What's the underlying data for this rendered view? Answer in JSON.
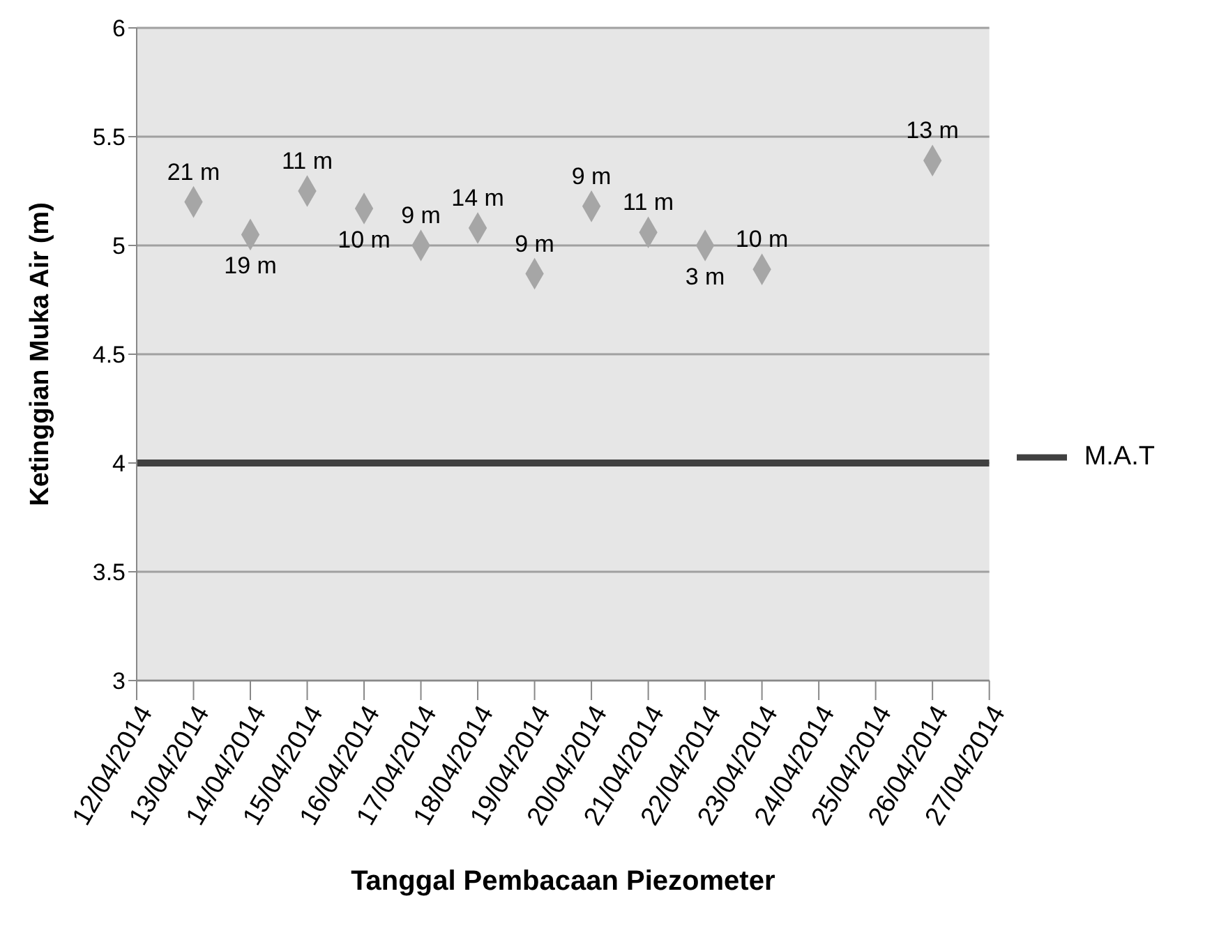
{
  "chart_data": {
    "type": "scatter",
    "xlabel": "Tanggal Pembacaan Piezometer",
    "ylabel": "Ketinggian Muka Air (m)",
    "x": [
      "2014-04-13",
      "2014-04-14",
      "2014-04-15",
      "2014-04-16",
      "2014-04-17",
      "2014-04-18",
      "2014-04-19",
      "2014-04-20",
      "2014-04-21",
      "2014-04-22",
      "2014-04-23",
      "2014-04-26"
    ],
    "series": [
      {
        "color": "#a6a6a6",
        "marker": "diamond",
        "values": [
          5.2,
          5.05,
          5.25,
          5.17,
          5.0,
          5.08,
          4.87,
          5.18,
          5.06,
          5.0,
          4.89,
          5.39
        ]
      },
      {
        "type": "line",
        "name": "M.A.T",
        "color": "#404040",
        "marker": "none",
        "x": [
          "2014-04-12",
          "2014-04-27"
        ],
        "values": [
          4,
          4
        ]
      }
    ],
    "annotations": [
      {
        "text": "21 m",
        "x": "2014-04-13",
        "y": 5.2
      },
      {
        "text": "19 m",
        "x": "2014-04-14",
        "y": 5.05
      },
      {
        "text": "11 m",
        "x": "2014-04-15",
        "y": 5.25
      },
      {
        "text": "10 m",
        "x": "2014-04-16",
        "y": 5.17
      },
      {
        "text": "9 m",
        "x": "2014-04-17",
        "y": 5.0
      },
      {
        "text": "14 m",
        "x": "2014-04-18",
        "y": 5.08
      },
      {
        "text": "9 m",
        "x": "2014-04-19",
        "y": 4.87
      },
      {
        "text": "9 m",
        "x": "2014-04-20",
        "y": 5.18
      },
      {
        "text": "11 m",
        "x": "2014-04-21",
        "y": 5.06
      },
      {
        "text": "3 m",
        "x": "2014-04-22",
        "y": 5.0
      },
      {
        "text": "10 m",
        "x": "2014-04-23",
        "y": 4.89
      },
      {
        "text": "13 m",
        "x": "2014-04-26",
        "y": 5.39
      }
    ],
    "xlim": [
      "2014-04-12",
      "2014-04-27"
    ],
    "xticks": [
      {
        "value": "2014-04-12",
        "label": "12/04/2014"
      },
      {
        "value": "2014-04-13",
        "label": "13/04/2014"
      },
      {
        "value": "2014-04-14",
        "label": "14/04/2014"
      },
      {
        "value": "2014-04-15",
        "label": "15/04/2014"
      },
      {
        "value": "2014-04-16",
        "label": "16/04/2014"
      },
      {
        "value": "2014-04-17",
        "label": "17/04/2014"
      },
      {
        "value": "2014-04-18",
        "label": "18/04/2014"
      },
      {
        "value": "2014-04-19",
        "label": "19/04/2014"
      },
      {
        "value": "2014-04-20",
        "label": "20/04/2014"
      },
      {
        "value": "2014-04-21",
        "label": "21/04/2014"
      },
      {
        "value": "2014-04-22",
        "label": "22/04/2014"
      },
      {
        "value": "2014-04-23",
        "label": "23/04/2014"
      },
      {
        "value": "2014-04-24",
        "label": "24/04/2014"
      },
      {
        "value": "2014-04-25",
        "label": "25/04/2014"
      },
      {
        "value": "2014-04-26",
        "label": "26/04/2014"
      },
      {
        "value": "2014-04-27",
        "label": "27/04/2014"
      }
    ],
    "ylim": [
      3,
      6
    ],
    "yticks": [
      3,
      3.5,
      4,
      4.5,
      5,
      5.5,
      6
    ],
    "grid": "y",
    "legend": "right"
  }
}
